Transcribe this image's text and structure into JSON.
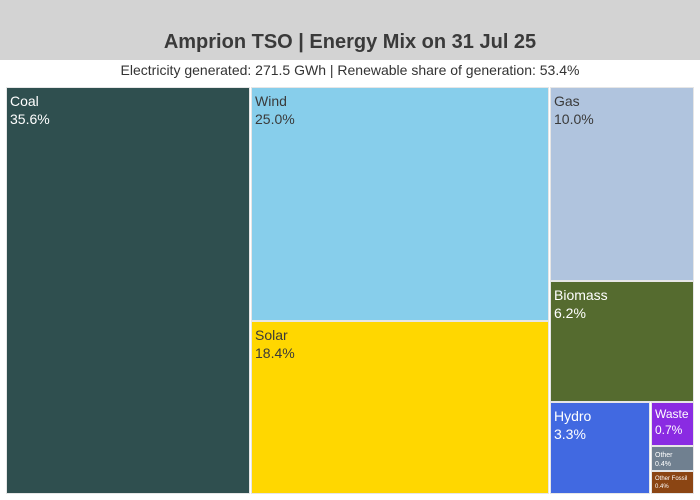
{
  "chart_data": {
    "type": "treemap",
    "title": "Amprion TSO | Energy Mix on 31 Jul 25",
    "subtitle": "Electricity generated: 271.5 GWh | Renewable share of generation: 53.4%",
    "items": [
      {
        "label": "Coal",
        "value": 35.6,
        "pct_label": "35.6%",
        "color": "#2f4f4f",
        "text_color": "#ffffff"
      },
      {
        "label": "Wind",
        "value": 25.0,
        "pct_label": "25.0%",
        "color": "#87ceeb",
        "text_color": "#3a3a3a"
      },
      {
        "label": "Solar",
        "value": 18.4,
        "pct_label": "18.4%",
        "color": "#ffd700",
        "text_color": "#3a3a3a"
      },
      {
        "label": "Gas",
        "value": 10.0,
        "pct_label": "10.0%",
        "color": "#b0c4de",
        "text_color": "#3a3a3a"
      },
      {
        "label": "Biomass",
        "value": 6.2,
        "pct_label": "6.2%",
        "color": "#556b2f",
        "text_color": "#ffffff"
      },
      {
        "label": "Hydro",
        "value": 3.3,
        "pct_label": "3.3%",
        "color": "#4169e1",
        "text_color": "#ffffff"
      },
      {
        "label": "Waste",
        "value": 0.7,
        "pct_label": "0.7%",
        "color": "#8a2be2",
        "text_color": "#ffffff"
      },
      {
        "label": "Other",
        "value": 0.4,
        "pct_label": "0.4%",
        "color": "#708090",
        "text_color": "#ffffff"
      },
      {
        "label": "Other Fossil",
        "value": 0.4,
        "pct_label": "0.4%",
        "color": "#8b4513",
        "text_color": "#ffffff"
      }
    ]
  }
}
